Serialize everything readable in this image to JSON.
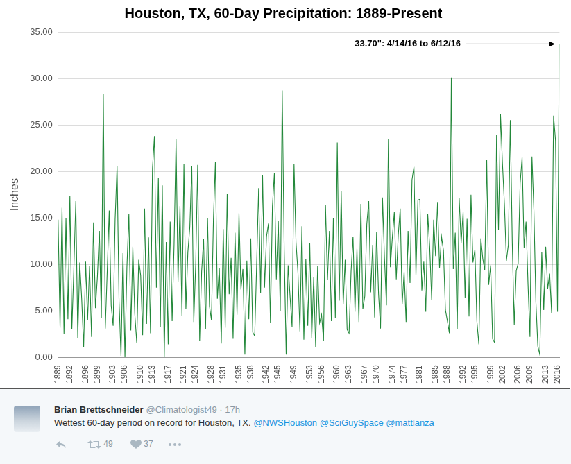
{
  "chart_data": {
    "type": "line",
    "title": "Houston, TX, 60-Day Precipitation: 1889-Present",
    "y_label": "Inches",
    "annotation": "33.70\": 4/14/16 to 6/12/16",
    "color": "#23883a",
    "grid": true,
    "xlim": [
      1889,
      2016.5
    ],
    "xticks": [
      1889,
      1892,
      1896,
      1899,
      1903,
      1906,
      1910,
      1913,
      1917,
      1921,
      1924,
      1928,
      1931,
      1935,
      1938,
      1942,
      1945,
      1949,
      1953,
      1956,
      1960,
      1963,
      1967,
      1970,
      1974,
      1977,
      1981,
      1985,
      1988,
      1992,
      1995,
      1999,
      2002,
      2006,
      2009,
      2013,
      2016
    ],
    "ylim": [
      0,
      35
    ],
    "yticks": [
      {
        "value": 0,
        "label": "0.00"
      },
      {
        "value": 5,
        "label": "5.00"
      },
      {
        "value": 10,
        "label": "10.00"
      },
      {
        "value": 15,
        "label": "15.00"
      },
      {
        "value": 20,
        "label": "20.00"
      },
      {
        "value": 25,
        "label": "25.00"
      },
      {
        "value": 30,
        "label": "30.00"
      },
      {
        "value": 35,
        "label": "35.00"
      }
    ],
    "x": [
      1889,
      1889.5,
      1890,
      1890.5,
      1891,
      1891.5,
      1892,
      1892.5,
      1893,
      1893.5,
      1894,
      1894.5,
      1895,
      1895.5,
      1896,
      1896.5,
      1897,
      1897.5,
      1898,
      1898.5,
      1899,
      1899.5,
      1900,
      1900.5,
      1901,
      1901.5,
      1902,
      1902.5,
      1903,
      1903.5,
      1904,
      1904.5,
      1905,
      1905.5,
      1906,
      1906.5,
      1907,
      1907.5,
      1908,
      1908.5,
      1909,
      1909.5,
      1910,
      1910.5,
      1911,
      1911.5,
      1912,
      1912.5,
      1913,
      1913.5,
      1914,
      1914.5,
      1915,
      1915.5,
      1916,
      1916.5,
      1917,
      1917.5,
      1918,
      1918.5,
      1919,
      1919.5,
      1920,
      1920.5,
      1921,
      1921.5,
      1922,
      1922.5,
      1923,
      1923.5,
      1924,
      1924.5,
      1925,
      1925.5,
      1926,
      1926.5,
      1927,
      1927.5,
      1928,
      1928.5,
      1929,
      1929.5,
      1930,
      1930.5,
      1931,
      1931.5,
      1932,
      1932.5,
      1933,
      1933.5,
      1934,
      1934.5,
      1935,
      1935.5,
      1936,
      1936.5,
      1937,
      1937.5,
      1938,
      1938.5,
      1939,
      1939.5,
      1940,
      1940.5,
      1941,
      1941.5,
      1942,
      1942.5,
      1943,
      1943.5,
      1944,
      1944.5,
      1945,
      1945.5,
      1946,
      1946.5,
      1947,
      1947.5,
      1948,
      1948.5,
      1949,
      1949.5,
      1950,
      1950.5,
      1951,
      1951.5,
      1952,
      1952.5,
      1953,
      1953.5,
      1954,
      1954.5,
      1955,
      1955.5,
      1956,
      1956.5,
      1957,
      1957.5,
      1958,
      1958.5,
      1959,
      1959.5,
      1960,
      1960.5,
      1961,
      1961.5,
      1962,
      1962.5,
      1963,
      1963.5,
      1964,
      1964.5,
      1965,
      1965.5,
      1966,
      1966.5,
      1967,
      1967.5,
      1968,
      1968.5,
      1969,
      1969.5,
      1970,
      1970.5,
      1971,
      1971.5,
      1972,
      1972.5,
      1973,
      1973.5,
      1974,
      1974.5,
      1975,
      1975.5,
      1976,
      1976.5,
      1977,
      1977.5,
      1978,
      1978.5,
      1979,
      1979.5,
      1980,
      1980.5,
      1981,
      1981.5,
      1982,
      1982.5,
      1983,
      1983.5,
      1984,
      1984.5,
      1985,
      1985.5,
      1986,
      1986.5,
      1987,
      1987.5,
      1988,
      1988.5,
      1989,
      1989.5,
      1990,
      1990.5,
      1991,
      1991.5,
      1992,
      1992.5,
      1993,
      1993.5,
      1994,
      1994.5,
      1995,
      1995.5,
      1996,
      1996.5,
      1997,
      1997.5,
      1998,
      1998.5,
      1999,
      1999.5,
      2000,
      2000.5,
      2001,
      2001.5,
      2002,
      2002.5,
      2003,
      2003.5,
      2004,
      2004.5,
      2005,
      2005.5,
      2006,
      2006.5,
      2007,
      2007.5,
      2008,
      2008.5,
      2009,
      2009.5,
      2010,
      2010.5,
      2011,
      2011.5,
      2012,
      2012.5,
      2013,
      2013.5,
      2014,
      2014.5,
      2015,
      2015.5,
      2016,
      2016.45
    ],
    "values": [
      14.8,
      3.2,
      16.1,
      2.5,
      15.0,
      4.1,
      17.4,
      3.0,
      9.5,
      16.8,
      2.1,
      10.2,
      6.3,
      1.1,
      10.3,
      4.0,
      9.8,
      2.2,
      14.5,
      5.3,
      8.7,
      13.6,
      4.2,
      28.3,
      3.1,
      9.4,
      15.8,
      5.6,
      3.4,
      14.8,
      20.6,
      6.0,
      0.1,
      11.2,
      0.0,
      9.7,
      15.4,
      2.9,
      11.9,
      4.7,
      1.6,
      10.5,
      8.8,
      2.4,
      16.0,
      3.6,
      12.9,
      2.6,
      20.3,
      23.8,
      7.5,
      19.3,
      3.3,
      18.5,
      0.0,
      12.4,
      1.4,
      14.6,
      3.9,
      12.2,
      23.5,
      8.1,
      16.3,
      4.5,
      20.8,
      5.2,
      11.3,
      14.0,
      20.6,
      3.8,
      10.1,
      20.7,
      1.8,
      9.2,
      12.7,
      3.0,
      15.0,
      5.5,
      4.0,
      14.8,
      21.0,
      6.3,
      9.6,
      1.5,
      13.8,
      3.2,
      17.6,
      6.8,
      10.7,
      2.0,
      13.4,
      4.6,
      15.5,
      7.3,
      9.5,
      0.3,
      10.4,
      4.1,
      12.8,
      2.7,
      2.3,
      10.1,
      18.2,
      6.9,
      19.6,
      7.5,
      13.0,
      14.4,
      3.7,
      16.2,
      19.8,
      8.4,
      14.7,
      5.0,
      28.7,
      11.6,
      0.3,
      9.9,
      6.5,
      3.3,
      20.8,
      12.4,
      9.1,
      2.8,
      14.1,
      1.9,
      10.6,
      3.4,
      12.3,
      2.1,
      8.6,
      1.1,
      9.8,
      3.7,
      4.6,
      1.8,
      16.4,
      8.3,
      13.6,
      3.9,
      15.0,
      4.2,
      23.1,
      6.1,
      17.9,
      5.7,
      10.5,
      3.0,
      2.6,
      9.2,
      13.0,
      4.9,
      11.7,
      3.8,
      16.5,
      5.2,
      6.6,
      14.3,
      16.8,
      7.0,
      12.1,
      4.3,
      13.5,
      6.8,
      3.1,
      17.2,
      10.7,
      5.6,
      23.5,
      9.7,
      12.9,
      15.6,
      8.4,
      13.1,
      16.0,
      5.7,
      9.2,
      3.8,
      13.6,
      8.0,
      19.1,
      20.5,
      8.8,
      16.9,
      17.0,
      7.2,
      10.3,
      4.9,
      15.4,
      11.9,
      6.2,
      14.8,
      10.9,
      16.7,
      9.6,
      13.0,
      11.5,
      5.1,
      3.9,
      2.6,
      30.1,
      9.5,
      13.4,
      3.0,
      17.1,
      12.3,
      15.6,
      6.4,
      14.9,
      4.4,
      17.5,
      10.2,
      11.6,
      3.9,
      1.4,
      12.8,
      10.6,
      9.4,
      21.2,
      7.8,
      9.9,
      2.0,
      1.6,
      23.9,
      13.7,
      26.2,
      20.9,
      16.5,
      10.4,
      12.1,
      25.5,
      12.3,
      3.5,
      9.3,
      10.1,
      18.7,
      21.5,
      11.8,
      14.6,
      7.9,
      2.2,
      21.6,
      15.8,
      6.0,
      1.2,
      0.3,
      11.3,
      5.1,
      11.9,
      7.4,
      9.0,
      4.8,
      26.0,
      23.3,
      4.9,
      33.7
    ]
  },
  "tweet": {
    "author": "Brian Brettschneider",
    "handle_line": "@Climatologist49 · 17h",
    "text": "Wettest 60-day period on record for Houston, TX.",
    "mentions": [
      "@NWSHouston",
      "@SciGuySpace",
      "@mattlanza"
    ],
    "retweets": 49,
    "likes": 37
  }
}
